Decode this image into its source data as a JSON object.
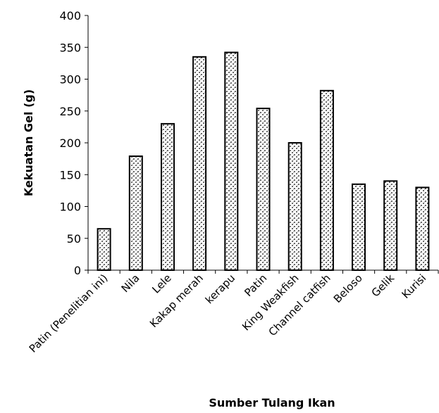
{
  "chart_data": {
    "type": "bar",
    "xlabel": "Sumber Tulang Ikan",
    "ylabel": "Kekuatan Gel (g)",
    "ylim": [
      0,
      400
    ],
    "yticks": [
      0,
      50,
      100,
      150,
      200,
      250,
      300,
      350,
      400
    ],
    "grid": false,
    "legend": "none",
    "categories": [
      "Patin (Penelitian ini)",
      "Nila",
      "Lele",
      "Kakap merah",
      "kerapu",
      "Patin",
      "King Weakfish",
      "Channel catfish",
      "Beloso",
      "Gelik",
      "Kurisi"
    ],
    "values": [
      65,
      179,
      230,
      335,
      342,
      254,
      200,
      282,
      135,
      140,
      130
    ],
    "bar_fill": "dotted-hatch",
    "colors": {
      "bar_outline": "#000000",
      "pattern": "#000000",
      "background": "#ffffff"
    }
  }
}
